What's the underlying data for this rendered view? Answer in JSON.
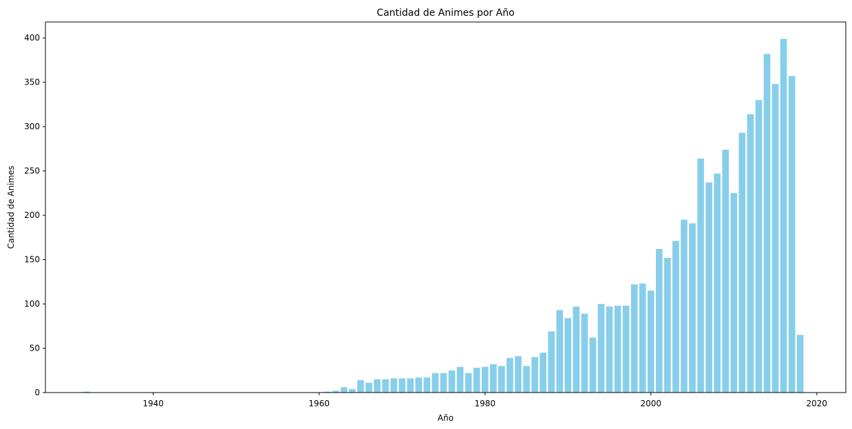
{
  "chart_data": {
    "type": "bar",
    "title": "Cantidad de Animes por Año",
    "xlabel": "Año",
    "ylabel": "Cantidad de Animes",
    "xlim": [
      1927,
      2023.5
    ],
    "ylim": [
      0,
      418
    ],
    "xticks": [
      1940,
      1960,
      1980,
      2000,
      2020
    ],
    "yticks": [
      0,
      50,
      100,
      150,
      200,
      250,
      300,
      350,
      400
    ],
    "bar_color": "#87ceeb",
    "grid": false,
    "x": [
      1932,
      1961,
      1962,
      1963,
      1964,
      1965,
      1966,
      1967,
      1968,
      1969,
      1970,
      1971,
      1972,
      1973,
      1974,
      1975,
      1976,
      1977,
      1978,
      1979,
      1980,
      1981,
      1982,
      1983,
      1984,
      1985,
      1986,
      1987,
      1988,
      1989,
      1990,
      1991,
      1992,
      1993,
      1994,
      1995,
      1996,
      1997,
      1998,
      1999,
      2000,
      2001,
      2002,
      2003,
      2004,
      2005,
      2006,
      2007,
      2008,
      2009,
      2010,
      2011,
      2012,
      2013,
      2014,
      2015,
      2016,
      2017,
      2018
    ],
    "values": [
      1,
      1,
      2,
      6,
      4,
      14,
      11,
      15,
      15,
      16,
      16,
      16,
      17,
      17,
      22,
      22,
      25,
      29,
      22,
      28,
      29,
      32,
      30,
      39,
      41,
      30,
      40,
      45,
      69,
      93,
      84,
      97,
      89,
      62,
      100,
      97,
      98,
      98,
      122,
      123,
      115,
      162,
      152,
      171,
      195,
      191,
      264,
      237,
      247,
      274,
      225,
      293,
      314,
      330,
      382,
      348,
      399,
      357,
      65
    ]
  }
}
